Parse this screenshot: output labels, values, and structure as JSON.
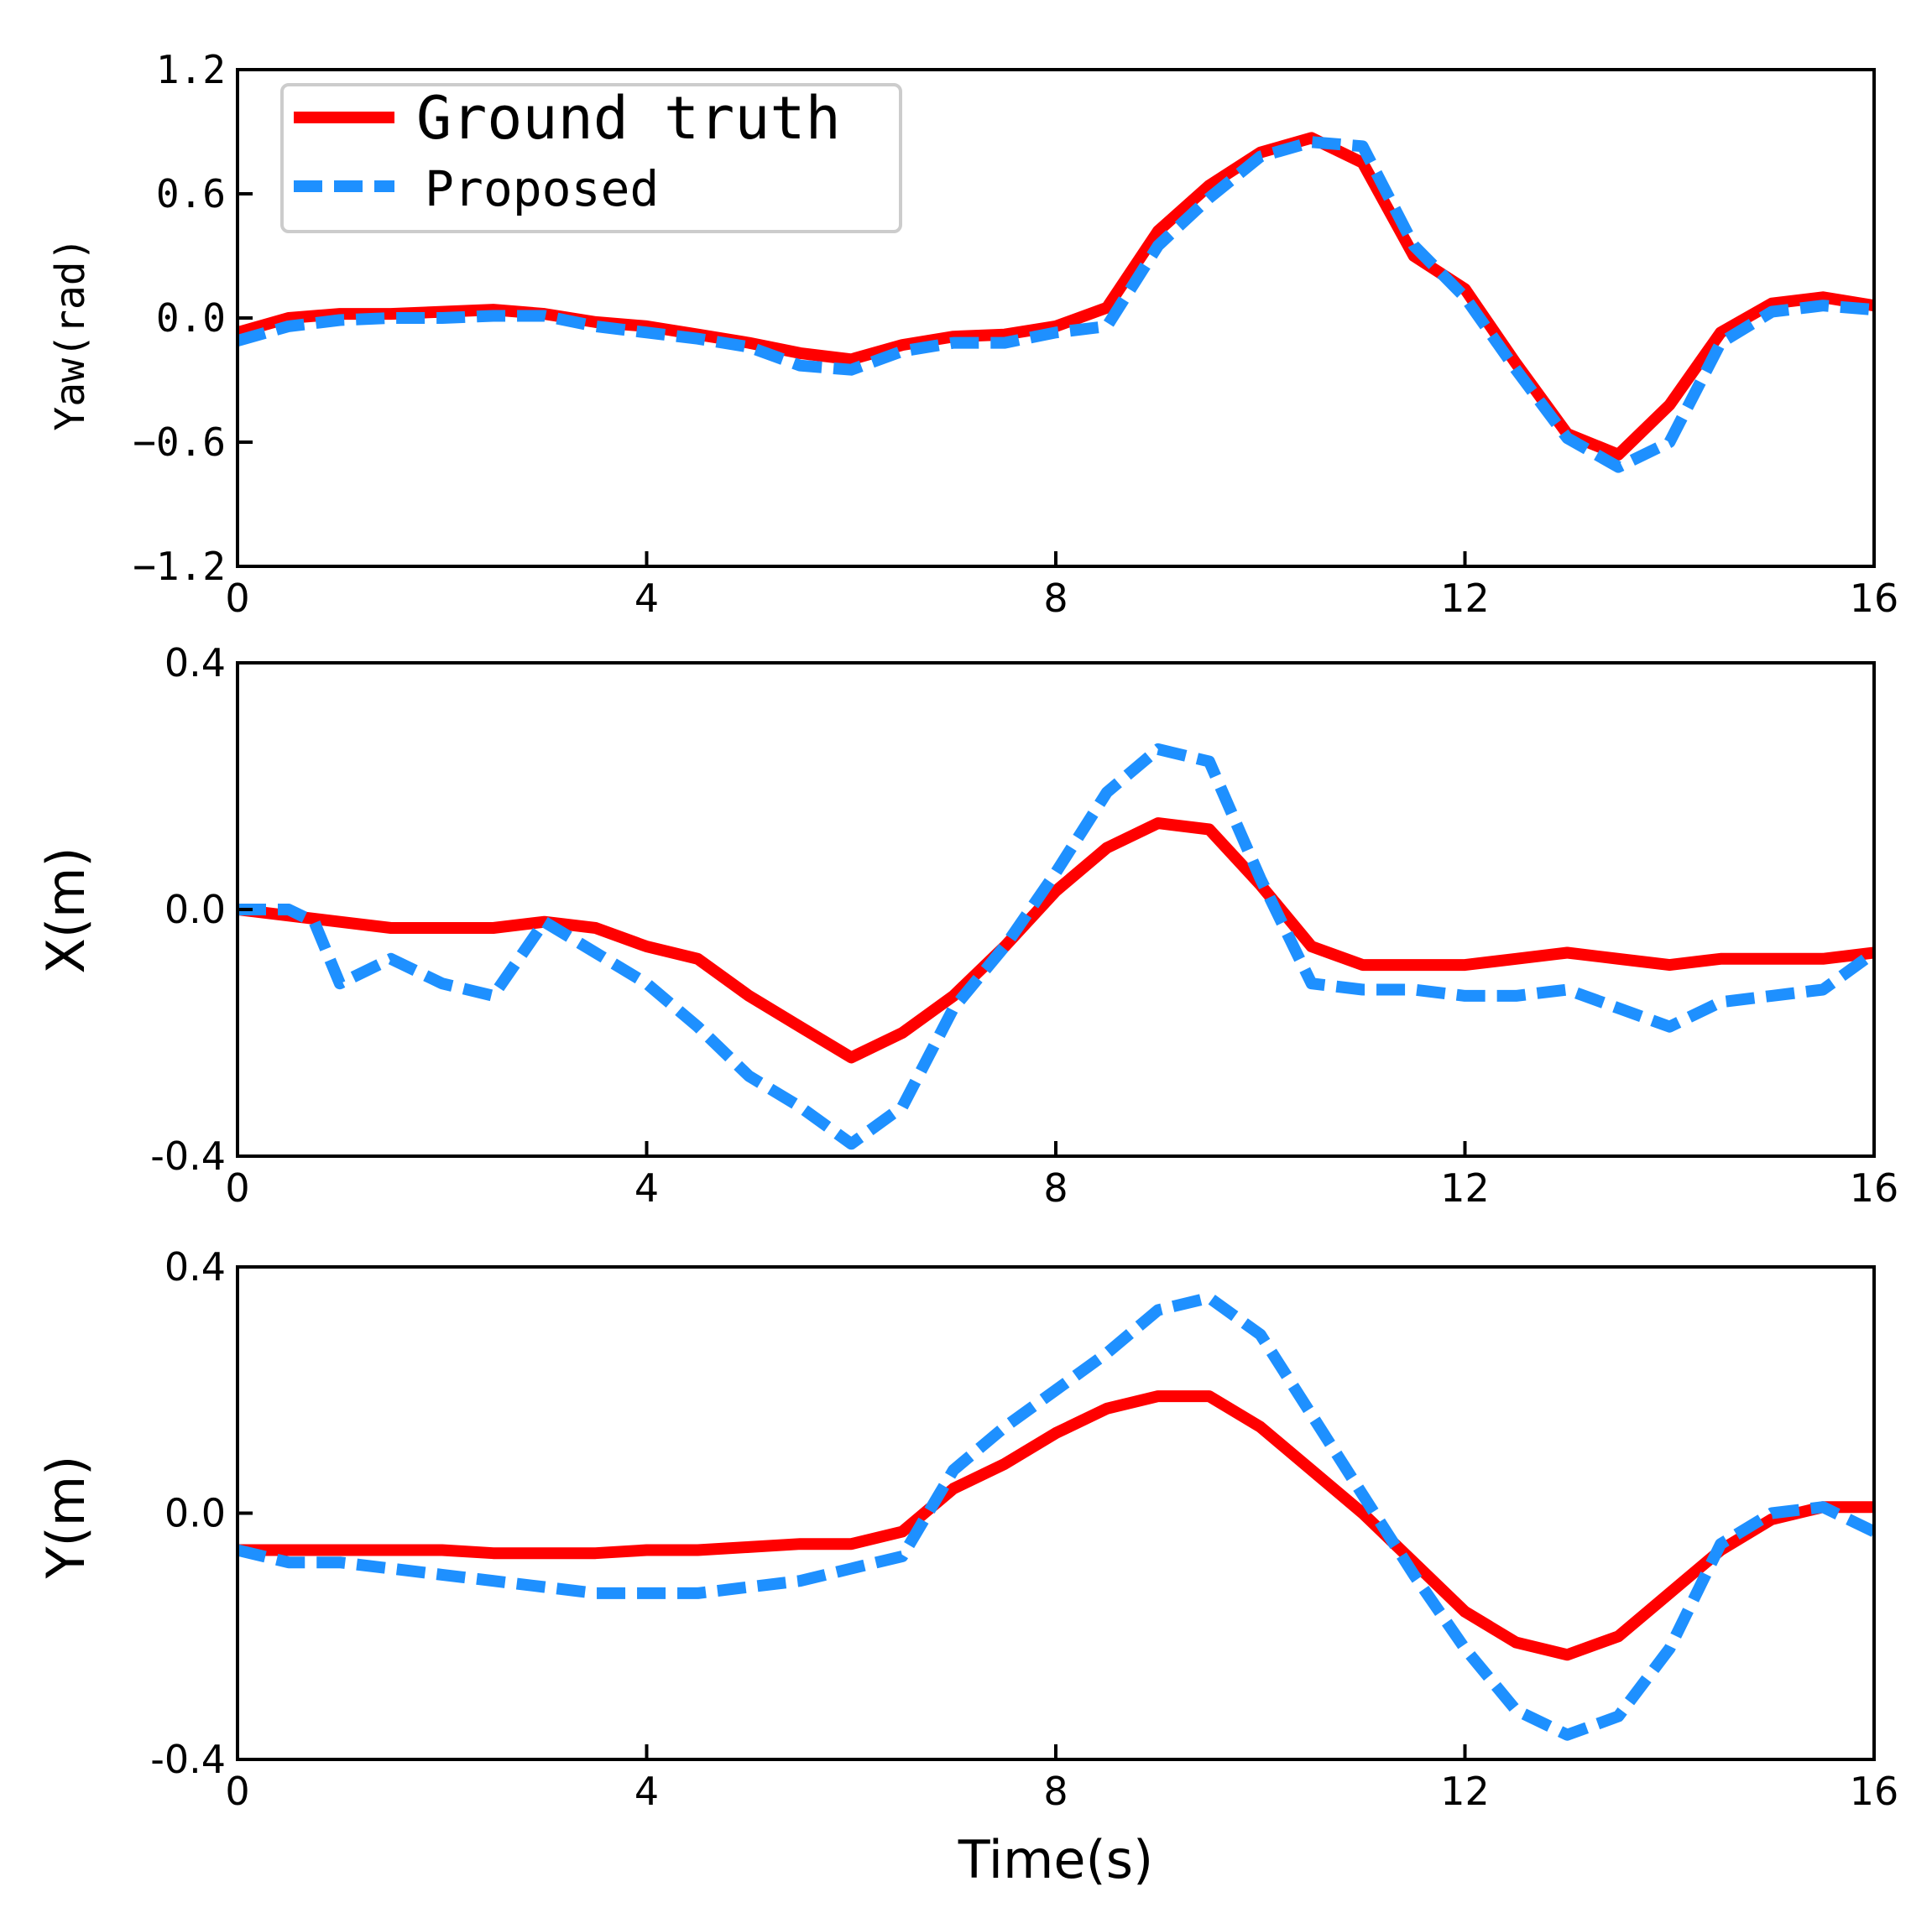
{
  "colors": {
    "ground_truth": "#ff0000",
    "proposed": "#1e90ff",
    "axis": "#000000"
  },
  "legend": {
    "entries": [
      "Ground truth",
      "Proposed"
    ]
  },
  "chart_data": [
    {
      "type": "line",
      "title": "",
      "xlabel": "",
      "ylabel": "Yaw(rad)",
      "xlim": [
        0,
        16
      ],
      "ylim": [
        -1.2,
        1.2
      ],
      "xticks": [
        0,
        4,
        8,
        12,
        16
      ],
      "xtick_labels": [
        "0",
        "4",
        "8",
        "12",
        "16"
      ],
      "yticks": [
        -1.2,
        -0.6,
        0.0,
        0.6,
        1.2
      ],
      "ytick_labels": [
        "−1.2",
        "−0.6",
        "0.0",
        "0.6",
        "1.2"
      ],
      "legend": "top-left",
      "series": [
        {
          "name": "Ground truth",
          "style": "solid",
          "x": [
            0,
            0.5,
            1,
            1.5,
            2,
            2.5,
            3,
            3.5,
            4,
            4.5,
            5,
            5.5,
            6,
            6.5,
            7,
            7.5,
            8,
            8.5,
            9,
            9.5,
            10,
            10.5,
            11,
            11.5,
            12,
            12.5,
            13,
            13.5,
            14,
            14.5,
            15,
            15.5,
            16
          ],
          "y": [
            -0.07,
            0.0,
            0.02,
            0.02,
            0.03,
            0.04,
            0.02,
            -0.02,
            -0.04,
            -0.08,
            -0.12,
            -0.17,
            -0.2,
            -0.13,
            -0.09,
            -0.08,
            -0.04,
            0.05,
            0.42,
            0.64,
            0.8,
            0.87,
            0.75,
            0.3,
            0.14,
            -0.22,
            -0.56,
            -0.66,
            -0.42,
            -0.07,
            0.07,
            0.1,
            0.06
          ]
        },
        {
          "name": "Proposed",
          "style": "dashed",
          "x": [
            0,
            0.5,
            1,
            1.5,
            2,
            2.5,
            3,
            3.5,
            4,
            4.5,
            5,
            5.5,
            6,
            6.5,
            7,
            7.5,
            8,
            8.5,
            9,
            9.5,
            10,
            10.5,
            11,
            11.5,
            12,
            12.5,
            13,
            13.5,
            14,
            14.5,
            15,
            15.5,
            16
          ],
          "y": [
            -0.11,
            -0.04,
            -0.01,
            0.0,
            0.0,
            0.01,
            0.01,
            -0.04,
            -0.07,
            -0.1,
            -0.14,
            -0.23,
            -0.25,
            -0.16,
            -0.12,
            -0.12,
            -0.07,
            -0.04,
            0.35,
            0.58,
            0.78,
            0.85,
            0.83,
            0.35,
            0.1,
            -0.25,
            -0.58,
            -0.72,
            -0.6,
            -0.12,
            0.03,
            0.06,
            0.04
          ]
        }
      ]
    },
    {
      "type": "line",
      "title": "",
      "xlabel": "",
      "ylabel": "X(m)",
      "xlim": [
        0,
        16
      ],
      "ylim": [
        -0.4,
        0.4
      ],
      "xticks": [
        0,
        4,
        8,
        12,
        16
      ],
      "xtick_labels": [
        "0",
        "4",
        "8",
        "12",
        "16"
      ],
      "yticks": [
        -0.4,
        0.0,
        0.4
      ],
      "ytick_labels": [
        "-0.4",
        "0.0",
        "0.4"
      ],
      "series": [
        {
          "name": "Ground truth",
          "style": "solid",
          "x": [
            0,
            0.5,
            1,
            1.5,
            2,
            2.5,
            3,
            3.5,
            4,
            4.5,
            5,
            5.5,
            6,
            6.5,
            7,
            7.5,
            8,
            8.5,
            9,
            9.5,
            10,
            10.5,
            11,
            11.5,
            12,
            12.5,
            13,
            13.5,
            14,
            14.5,
            15,
            15.5,
            16
          ],
          "y": [
            0.0,
            -0.01,
            -0.02,
            -0.03,
            -0.03,
            -0.03,
            -0.02,
            -0.03,
            -0.06,
            -0.08,
            -0.14,
            -0.19,
            -0.24,
            -0.2,
            -0.14,
            -0.06,
            0.03,
            0.1,
            0.14,
            0.13,
            0.04,
            -0.06,
            -0.09,
            -0.09,
            -0.09,
            -0.08,
            -0.07,
            -0.08,
            -0.09,
            -0.08,
            -0.08,
            -0.08,
            -0.07
          ]
        },
        {
          "name": "Proposed",
          "style": "dashed",
          "x": [
            0,
            0.5,
            0.75,
            1,
            1.5,
            2,
            2.5,
            3,
            3.5,
            4,
            4.5,
            5,
            5.5,
            6,
            6.5,
            7,
            7.5,
            8,
            8.5,
            9,
            9.5,
            10,
            10.5,
            11,
            11.5,
            12,
            12.5,
            13,
            13.5,
            14,
            14.5,
            15,
            15.5,
            16
          ],
          "y": [
            0.0,
            0.0,
            -0.02,
            -0.12,
            -0.08,
            -0.12,
            -0.14,
            -0.02,
            -0.07,
            -0.12,
            -0.19,
            -0.27,
            -0.32,
            -0.38,
            -0.32,
            -0.16,
            -0.06,
            0.06,
            0.19,
            0.26,
            0.24,
            0.05,
            -0.12,
            -0.13,
            -0.13,
            -0.14,
            -0.14,
            -0.13,
            -0.16,
            -0.19,
            -0.15,
            -0.14,
            -0.13,
            -0.07
          ]
        }
      ]
    },
    {
      "type": "line",
      "title": "",
      "xlabel": "Time(s)",
      "ylabel": "Y(m)",
      "xlim": [
        0,
        16
      ],
      "ylim": [
        -0.4,
        0.4
      ],
      "xticks": [
        0,
        4,
        8,
        12,
        16
      ],
      "xtick_labels": [
        "0",
        "4",
        "8",
        "12",
        "16"
      ],
      "yticks": [
        -0.4,
        0.0,
        0.4
      ],
      "ytick_labels": [
        "-0.4",
        "0.0",
        "0.4"
      ],
      "series": [
        {
          "name": "Ground truth",
          "style": "solid",
          "x": [
            0,
            0.5,
            1,
            1.5,
            2,
            2.5,
            3,
            3.5,
            4,
            4.5,
            5,
            5.5,
            6,
            6.5,
            7,
            7.5,
            8,
            8.5,
            9,
            9.5,
            10,
            10.5,
            11,
            11.5,
            12,
            12.5,
            13,
            13.5,
            14,
            14.5,
            15,
            15.5,
            16
          ],
          "y": [
            -0.06,
            -0.06,
            -0.06,
            -0.06,
            -0.06,
            -0.065,
            -0.065,
            -0.065,
            -0.06,
            -0.06,
            -0.055,
            -0.05,
            -0.05,
            -0.03,
            0.04,
            0.08,
            0.13,
            0.17,
            0.19,
            0.19,
            0.14,
            0.07,
            0.0,
            -0.08,
            -0.16,
            -0.21,
            -0.23,
            -0.2,
            -0.13,
            -0.06,
            -0.01,
            0.01,
            0.01
          ]
        },
        {
          "name": "Proposed",
          "style": "dashed",
          "x": [
            0,
            0.5,
            1,
            1.5,
            2,
            2.5,
            3,
            3.5,
            4,
            4.5,
            5,
            5.5,
            6,
            6.5,
            7,
            7.5,
            8,
            8.5,
            9,
            9.5,
            10,
            10.5,
            11,
            11.5,
            12,
            12.5,
            13,
            13.5,
            14,
            14.5,
            15,
            15.5,
            16
          ],
          "y": [
            -0.06,
            -0.08,
            -0.08,
            -0.09,
            -0.1,
            -0.11,
            -0.12,
            -0.13,
            -0.13,
            -0.13,
            -0.12,
            -0.11,
            -0.09,
            -0.07,
            0.07,
            0.14,
            0.2,
            0.26,
            0.33,
            0.35,
            0.29,
            0.16,
            0.03,
            -0.1,
            -0.22,
            -0.32,
            -0.36,
            -0.33,
            -0.22,
            -0.05,
            0.0,
            0.01,
            -0.03
          ]
        }
      ]
    }
  ]
}
